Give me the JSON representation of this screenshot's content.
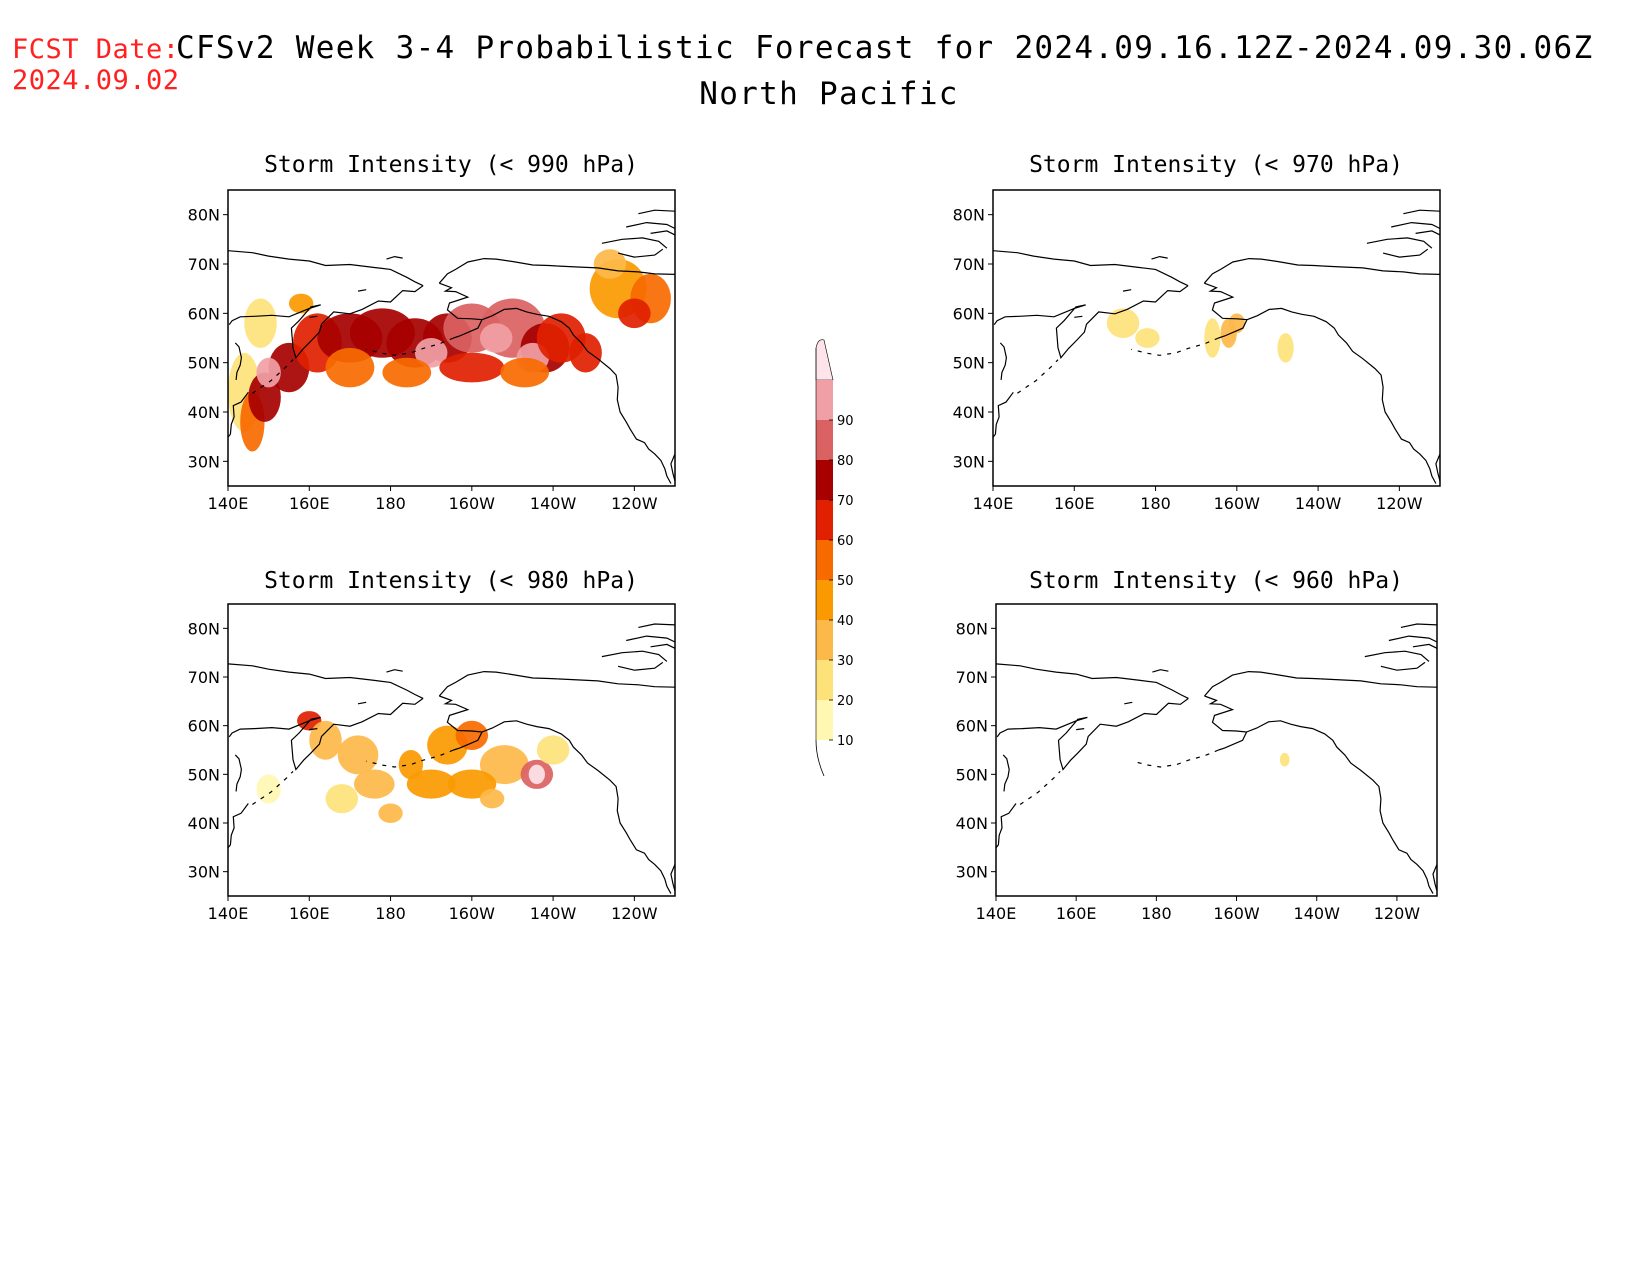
{
  "header": {
    "fcst_label": "FCST Date:",
    "fcst_date": "2024.09.02",
    "title": "CFSv2 Week 3-4 Probabilistic Forecast for 2024.09.16.12Z-2024.09.30.06Z",
    "subtitle": "North Pacific"
  },
  "map_extent": {
    "lon_range": [
      "140E",
      "110W"
    ],
    "lat_range": [
      "25N",
      "85N"
    ]
  },
  "axis_ticks": {
    "lat": [
      "80N",
      "70N",
      "60N",
      "50N",
      "40N",
      "30N"
    ],
    "lon": [
      "140E",
      "160E",
      "180",
      "160W",
      "140W",
      "120W"
    ]
  },
  "panels": [
    {
      "id": "p990",
      "title": "Storm Intensity (< 990 hPa)",
      "max_probability": 90
    },
    {
      "id": "p970",
      "title": "Storm Intensity (< 970 hPa)",
      "max_probability": 20
    },
    {
      "id": "p980",
      "title": "Storm Intensity (< 980 hPa)",
      "max_probability": 80
    },
    {
      "id": "p960",
      "title": "Storm Intensity (< 960 hPa)",
      "max_probability": 20
    }
  ],
  "colorbar": {
    "levels": [
      "10",
      "20",
      "30",
      "40",
      "50",
      "60",
      "70",
      "80",
      "90"
    ],
    "colors": [
      "#fff7b2",
      "#fde27a",
      "#fdb84a",
      "#fa9a00",
      "#f76a00",
      "#e02000",
      "#a60000",
      "#db6262",
      "#f0a0a5",
      "#fde4ea"
    ]
  },
  "colors": {
    "coastline": "#000000",
    "fcst_text": "#ff2020"
  }
}
